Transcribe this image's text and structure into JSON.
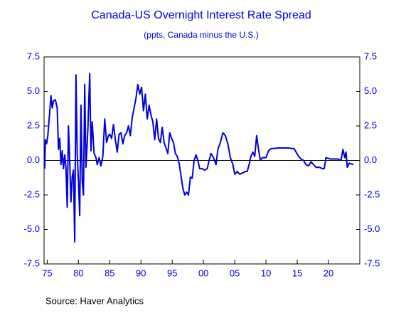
{
  "chart_data": {
    "type": "line",
    "title": "Canada-US Overnight Interest Rate Spread",
    "subtitle": "(ppts, Canada minus the U.S.)",
    "source": "Source:  Haver Analytics",
    "x": [
      1974.6,
      1974.7,
      1974.9,
      1975.1,
      1975.4,
      1975.6,
      1975.8,
      1976.0,
      1976.3,
      1976.6,
      1976.8,
      1977.0,
      1977.2,
      1977.4,
      1977.6,
      1977.8,
      1978.0,
      1978.2,
      1978.4,
      1978.6,
      1978.8,
      1979.0,
      1979.2,
      1979.4,
      1979.6,
      1979.8,
      1980.0,
      1980.2,
      1980.4,
      1980.6,
      1980.8,
      1981.0,
      1981.2,
      1981.5,
      1981.8,
      1982.0,
      1982.2,
      1982.5,
      1982.8,
      1983.0,
      1983.3,
      1983.6,
      1983.9,
      1984.2,
      1984.5,
      1984.8,
      1985.0,
      1985.3,
      1985.6,
      1985.9,
      1986.2,
      1986.5,
      1986.8,
      1987.1,
      1987.4,
      1987.7,
      1988.0,
      1988.3,
      1988.6,
      1988.9,
      1989.2,
      1989.5,
      1989.8,
      1990.1,
      1990.4,
      1990.7,
      1991.0,
      1991.3,
      1991.6,
      1991.9,
      1992.2,
      1992.5,
      1992.8,
      1993.1,
      1993.4,
      1993.7,
      1994.0,
      1994.3,
      1994.6,
      1994.9,
      1995.2,
      1995.5,
      1995.8,
      1996.1,
      1996.4,
      1996.7,
      1997.0,
      1997.3,
      1997.6,
      1997.9,
      1998.2,
      1998.5,
      1998.8,
      1999.1,
      1999.4,
      1999.8,
      2000.2,
      2000.6,
      2000.9,
      2001.2,
      2001.6,
      2002.0,
      2002.3,
      2002.7,
      2003.1,
      2003.5,
      2003.9,
      2004.3,
      2004.7,
      2005.0,
      2005.4,
      2005.8,
      2006.3,
      2006.7,
      2007.0,
      2007.3,
      2007.6,
      2007.9,
      2008.2,
      2008.5,
      2008.8,
      2009.1,
      2009.4,
      2010.0,
      2010.4,
      2010.8,
      2012.0,
      2013.5,
      2014.5,
      2015.2,
      2015.6,
      2016.0,
      2016.4,
      2016.8,
      2017.2,
      2017.6,
      2018.0,
      2018.6,
      2019.0,
      2019.3,
      2019.6,
      2020.3,
      2021.5,
      2022.0,
      2022.3,
      2022.6,
      2022.8,
      2023.0,
      2023.3,
      2024.0
    ],
    "series": [
      {
        "name": "Canada minus U.S.",
        "color": "#0000dd",
        "values": [
          -0.6,
          1.5,
          1.2,
          1.8,
          3.5,
          4.7,
          3.8,
          4.3,
          4.4,
          3.8,
          0.8,
          1.6,
          -0.3,
          0.7,
          -0.6,
          0.4,
          -0.5,
          -3.4,
          2.5,
          0.0,
          -3.0,
          -1.2,
          -0.7,
          -5.9,
          6.2,
          0.5,
          -1.5,
          -4.0,
          4.0,
          -1.5,
          -2.5,
          5.5,
          -0.5,
          2.2,
          6.3,
          0.7,
          2.8,
          0.5,
          0.2,
          -0.3,
          0.2,
          -0.4,
          0.3,
          3.0,
          1.3,
          1.8,
          1.9,
          1.6,
          2.6,
          1.5,
          0.6,
          1.9,
          2.0,
          1.2,
          1.8,
          2.0,
          2.5,
          1.8,
          3.1,
          3.8,
          4.5,
          5.5,
          4.8,
          5.3,
          3.6,
          4.8,
          3.0,
          4.0,
          3.3,
          2.8,
          1.5,
          3.0,
          1.6,
          1.3,
          2.4,
          1.3,
          0.9,
          0.5,
          2.0,
          1.6,
          1.3,
          0.5,
          0.3,
          -0.2,
          -1.1,
          -2.0,
          -2.5,
          -2.3,
          -2.5,
          -1.2,
          -1.3,
          0.0,
          0.4,
          0.0,
          -0.6,
          -0.6,
          -0.7,
          -0.6,
          0.0,
          0.5,
          0.2,
          -0.3,
          0.8,
          1.3,
          2.0,
          1.8,
          1.2,
          0.2,
          -0.3,
          -1.0,
          -0.8,
          -1.0,
          -0.9,
          -0.8,
          -0.8,
          -0.3,
          0.3,
          0.6,
          0.3,
          1.8,
          0.8,
          0.0,
          0.2,
          0.2,
          0.7,
          0.85,
          0.9,
          0.9,
          0.85,
          0.3,
          0.1,
          0.0,
          -0.3,
          -0.4,
          -0.1,
          -0.3,
          -0.5,
          -0.5,
          -0.6,
          -0.6,
          0.2,
          0.1,
          0.1,
          0.0,
          0.8,
          0.2,
          0.6,
          -0.5,
          -0.2,
          -0.3
        ]
      }
    ],
    "xlim": [
      1974.5,
      2025
    ],
    "xticks": [
      {
        "value": 1975,
        "label": "75"
      },
      {
        "value": 1980,
        "label": "80"
      },
      {
        "value": 1985,
        "label": "85"
      },
      {
        "value": 1990,
        "label": "90"
      },
      {
        "value": 1995,
        "label": "95"
      },
      {
        "value": 2000,
        "label": "00"
      },
      {
        "value": 2005,
        "label": "05"
      },
      {
        "value": 2010,
        "label": "10"
      },
      {
        "value": 2015,
        "label": "15"
      },
      {
        "value": 2020,
        "label": "20"
      }
    ],
    "ylim": [
      -7.5,
      7.5
    ],
    "yticks": [
      7.5,
      {
        "value": 5,
        "label": "5.0"
      },
      2.5,
      {
        "value": 0,
        "label": "0.0"
      },
      -2.5,
      {
        "value": -5,
        "label": "-5.0"
      },
      -7.5
    ],
    "y2lim": [
      -7.5,
      7.5
    ],
    "y2ticks": [
      7.5,
      {
        "value": 5,
        "label": "5.0"
      },
      2.5,
      {
        "value": 0,
        "label": "0.0"
      },
      -2.5,
      {
        "value": -5,
        "label": "-5.0"
      },
      -7.5
    ],
    "zero_line": true,
    "axis_color": "#0000dd"
  }
}
